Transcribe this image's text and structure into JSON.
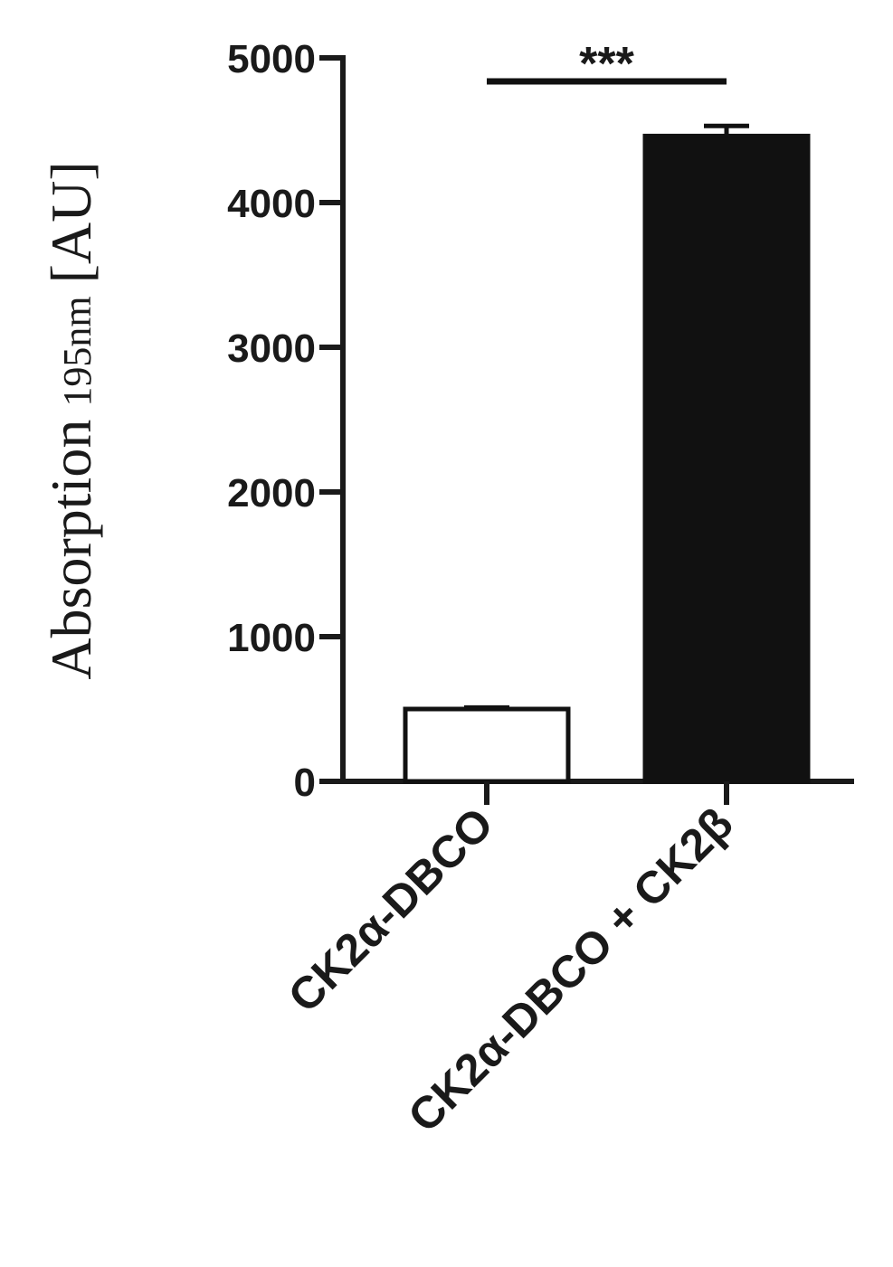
{
  "chart_data": {
    "type": "bar",
    "categories": [
      "CK2α-DBCO",
      "CK2α-DBCO + CK2β"
    ],
    "series": [
      {
        "values": [
          500,
          4460
        ],
        "errors": [
          10,
          70
        ],
        "fills": [
          "#ffffff",
          "#111111"
        ]
      }
    ],
    "ylabel": {
      "main": "Absorption",
      "subscript": "195nm",
      "unit": "[AU]"
    },
    "ylim": [
      0,
      5000
    ],
    "yticks": [
      "0",
      "1000",
      "2000",
      "3000",
      "4000",
      "5000"
    ],
    "grid": false,
    "legend": "none",
    "significance": {
      "label": "***",
      "between": [
        0,
        1
      ]
    }
  }
}
